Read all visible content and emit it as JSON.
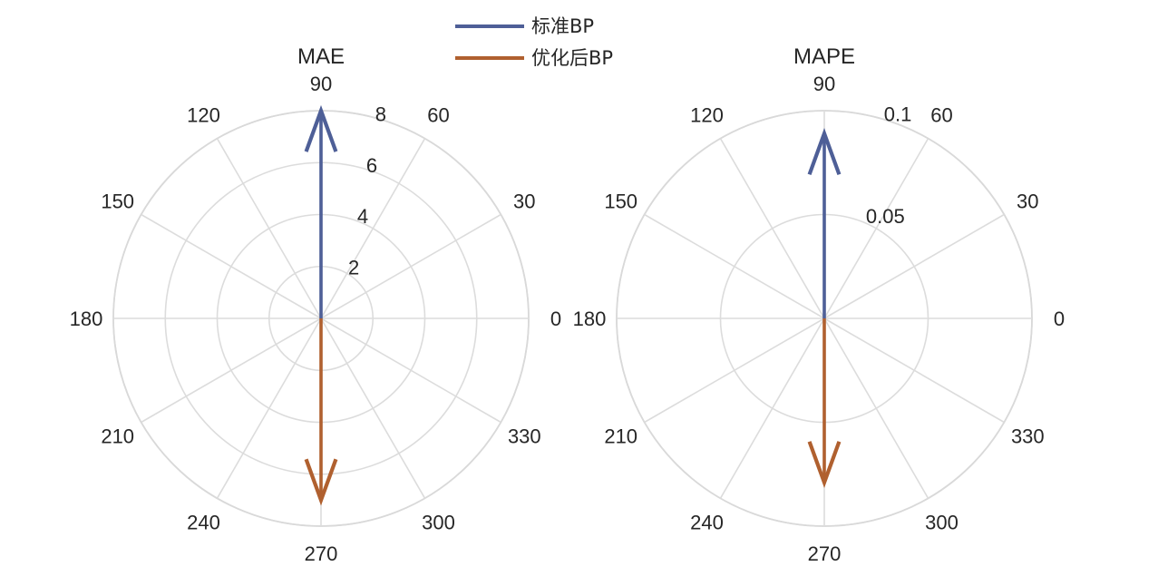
{
  "legend": {
    "entries": [
      {
        "label": "标准BP",
        "color": "#4e5f97"
      },
      {
        "label": "优化后BP",
        "color": "#b0602f"
      }
    ]
  },
  "chart_data": [
    {
      "type": "polar-compass",
      "title": "MAE",
      "theta_ticks": [
        0,
        30,
        60,
        90,
        120,
        150,
        180,
        210,
        240,
        270,
        300,
        330
      ],
      "r_ticks": [
        2,
        4,
        6,
        8
      ],
      "r_max": 8,
      "series": [
        {
          "name": "标准BP",
          "angle": 90,
          "magnitude": 8,
          "color": "#4e5f97"
        },
        {
          "name": "优化后BP",
          "angle": 270,
          "magnitude": 7,
          "color": "#b0602f"
        }
      ]
    },
    {
      "type": "polar-compass",
      "title": "MAPE",
      "theta_ticks": [
        0,
        30,
        60,
        90,
        120,
        150,
        180,
        210,
        240,
        270,
        300,
        330
      ],
      "r_ticks": [
        0.05,
        0.1
      ],
      "r_max": 0.1,
      "series": [
        {
          "name": "标准BP",
          "angle": 90,
          "magnitude": 0.089,
          "color": "#4e5f97"
        },
        {
          "name": "优化后BP",
          "angle": 270,
          "magnitude": 0.079,
          "color": "#b0602f"
        }
      ]
    }
  ]
}
